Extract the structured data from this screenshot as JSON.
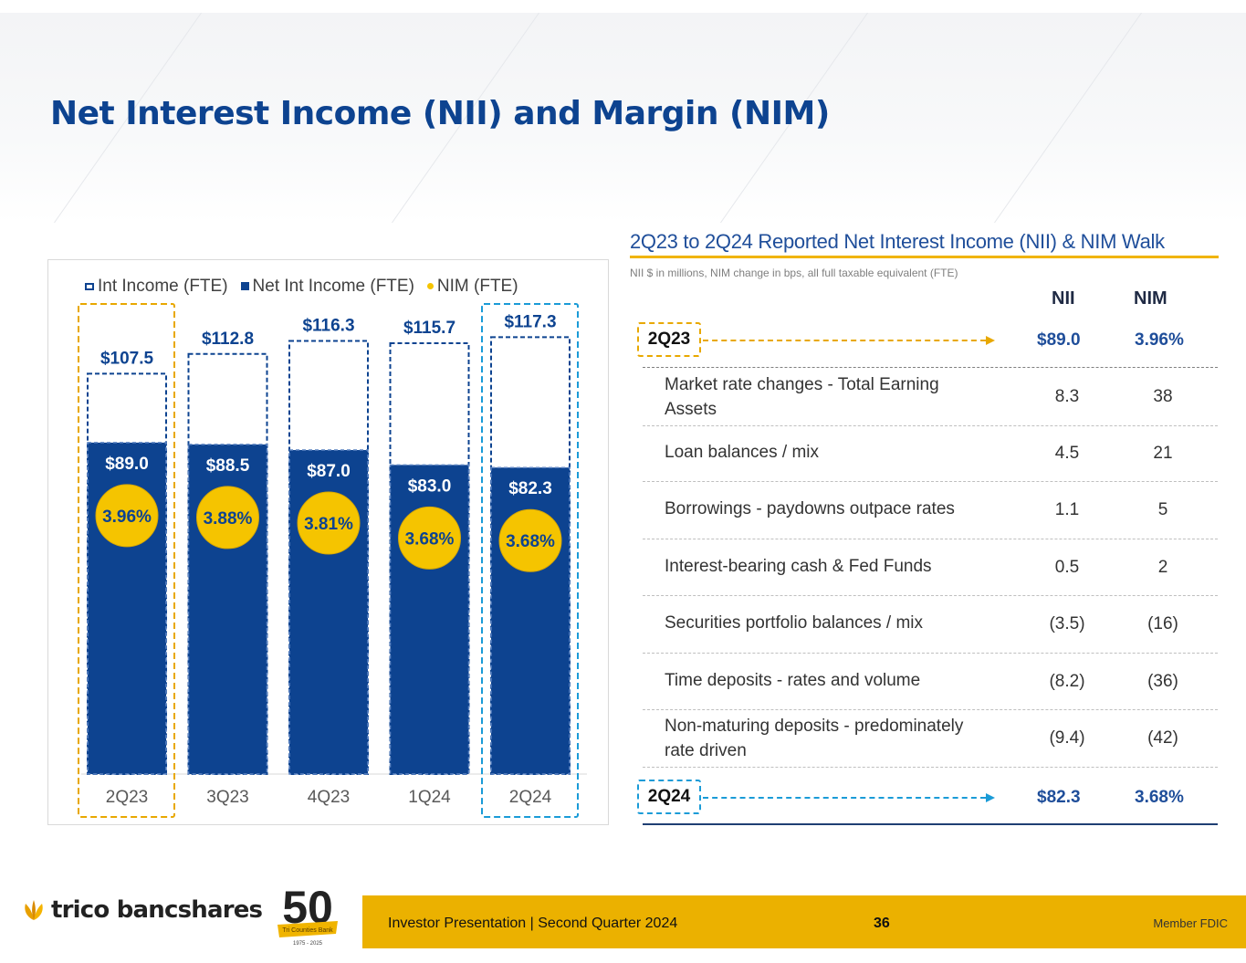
{
  "page": {
    "title": "Net Interest Income (NII) and Margin (NIM)"
  },
  "chart_data": {
    "type": "bar",
    "title": "",
    "categories": [
      "2Q23",
      "3Q23",
      "4Q23",
      "1Q24",
      "2Q24"
    ],
    "series": [
      {
        "name": "Int Income (FTE)",
        "values": [
          107.5,
          112.8,
          116.3,
          115.7,
          117.3
        ],
        "labels": [
          "$107.5",
          "$112.8",
          "$116.3",
          "$115.7",
          "$117.3"
        ]
      },
      {
        "name": "Net Int Income (FTE)",
        "values": [
          89.0,
          88.5,
          87.0,
          83.0,
          82.3
        ],
        "labels": [
          "$89.0",
          "$88.5",
          "$87.0",
          "$83.0",
          "$82.3"
        ]
      },
      {
        "name": "NIM (FTE)",
        "values": [
          3.96,
          3.88,
          3.81,
          3.68,
          3.68
        ],
        "labels": [
          "3.96%",
          "3.88%",
          "3.81%",
          "3.68%",
          "3.68%"
        ]
      }
    ],
    "legend": [
      "Int Income (FTE)",
      "Net Int Income (FTE)",
      "NIM (FTE)"
    ],
    "legend_position": "top",
    "highlighted_categories": [
      "2Q23",
      "2Q24"
    ],
    "colors": {
      "net_int_income": "#0d4390",
      "int_income_border": "#0d4390",
      "nim": "#f5c400",
      "highlight_start": "#e8a800",
      "highlight_end": "#1a9bd7"
    }
  },
  "walk": {
    "title": "2Q23 to 2Q24 Reported Net Interest Income (NII) & NIM Walk",
    "subtitle": "NII $ in millions, NIM change in bps, all full taxable equivalent (FTE)",
    "col_nii": "NII",
    "col_nim": "NIM",
    "start": {
      "label": "2Q23",
      "nii": "$89.0",
      "nim": "3.96%"
    },
    "rows": [
      {
        "label": "Market rate changes - Total Earning Assets",
        "nii": "8.3",
        "nim": "38"
      },
      {
        "label": "Loan balances / mix",
        "nii": "4.5",
        "nim": "21"
      },
      {
        "label": "Borrowings - paydowns outpace rates",
        "nii": "1.1",
        "nim": "5"
      },
      {
        "label": "Interest-bearing cash & Fed Funds",
        "nii": "0.5",
        "nim": "2"
      },
      {
        "label": "Securities portfolio balances / mix",
        "nii": "(3.5)",
        "nim": "(16)"
      },
      {
        "label": "Time deposits - rates and volume",
        "nii": "(8.2)",
        "nim": "(36)"
      },
      {
        "label": "Non-maturing deposits - predominately rate driven",
        "nii": "(9.4)",
        "nim": "(42)"
      }
    ],
    "end": {
      "label": "2Q24",
      "nii": "$82.3",
      "nim": "3.68%"
    }
  },
  "footer": {
    "company": "trico bancshares",
    "badge_number": "50",
    "badge_banner": "Tri Counties Bank",
    "badge_years": "1975 - 2025",
    "presentation": "Investor Presentation  |  Second Quarter 2024",
    "page_number": "36",
    "member": "Member FDIC"
  }
}
